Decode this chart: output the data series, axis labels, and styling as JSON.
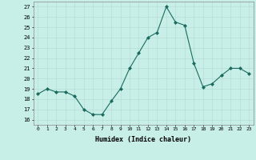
{
  "x": [
    0,
    1,
    2,
    3,
    4,
    5,
    6,
    7,
    8,
    9,
    10,
    11,
    12,
    13,
    14,
    15,
    16,
    17,
    18,
    19,
    20,
    21,
    22,
    23
  ],
  "y": [
    18.5,
    19.0,
    18.7,
    18.7,
    18.3,
    17.0,
    16.5,
    16.5,
    17.8,
    19.0,
    21.0,
    22.5,
    24.0,
    24.5,
    27.0,
    25.5,
    25.2,
    21.5,
    19.2,
    19.5,
    20.3,
    21.0,
    21.0,
    20.5
  ],
  "line_color": "#1a6b5e",
  "marker": "D",
  "marker_size": 2,
  "bg_color": "#c8eee8",
  "grid_color": "#b8ddd8",
  "xlabel": "Humidex (Indice chaleur)",
  "ylim": [
    15.5,
    27.5
  ],
  "yticks": [
    16,
    17,
    18,
    19,
    20,
    21,
    22,
    23,
    24,
    25,
    26,
    27
  ],
  "xticks": [
    0,
    1,
    2,
    3,
    4,
    5,
    6,
    7,
    8,
    9,
    10,
    11,
    12,
    13,
    14,
    15,
    16,
    17,
    18,
    19,
    20,
    21,
    22,
    23
  ],
  "xlim": [
    -0.5,
    23.5
  ]
}
